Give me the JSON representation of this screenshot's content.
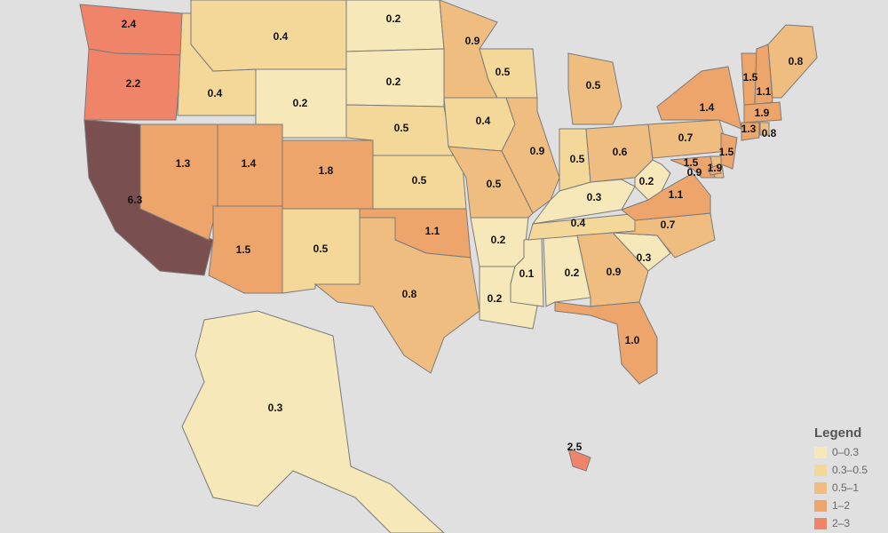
{
  "states": [
    {
      "value": 2.4,
      "color": "#f08468"
    },
    {
      "value": 2.2,
      "color": "#f08468"
    },
    {
      "value": 6.3,
      "color": "#7a4f50"
    },
    {
      "value": 0.4,
      "color": "#f4d89a"
    },
    {
      "value": 0.4,
      "color": "#f4d89a"
    },
    {
      "value": 0.2,
      "color": "#f6e8b8"
    },
    {
      "value": 1.3,
      "color": "#eda56b"
    },
    {
      "value": 1.4,
      "color": "#eda56b"
    },
    {
      "value": 1.8,
      "color": "#eda56b"
    },
    {
      "value": 1.5,
      "color": "#eda56b"
    },
    {
      "value": 0.5,
      "color": "#f4d89a"
    },
    {
      "value": 0.2,
      "color": "#f6e8b8"
    },
    {
      "value": 0.2,
      "color": "#f6e8b8"
    },
    {
      "value": 0.5,
      "color": "#f4d89a"
    },
    {
      "value": 0.5,
      "color": "#f4d89a"
    },
    {
      "value": 1.1,
      "color": "#eda56b"
    },
    {
      "value": 0.8,
      "color": "#f0bd80"
    },
    {
      "value": 0.9,
      "color": "#f0bd80"
    },
    {
      "value": 0.4,
      "color": "#f4d89a"
    },
    {
      "value": 0.5,
      "color": "#f0bd80"
    },
    {
      "value": 0.5,
      "color": "#f4d89a"
    },
    {
      "value": 0.9,
      "color": "#f0bd80"
    },
    {
      "value": 0.2,
      "color": "#f6e8b8"
    },
    {
      "value": 0.2,
      "color": "#f6e8b8"
    },
    {
      "value": 0.1,
      "color": "#f6e8b8"
    },
    {
      "value": 0.2,
      "color": "#f6e8b8"
    },
    {
      "value": 0.4,
      "color": "#f4d89a"
    },
    {
      "value": 0.3,
      "color": "#f6e8b8"
    },
    {
      "value": 0.5,
      "color": "#f4d89a"
    },
    {
      "value": 0.6,
      "color": "#f0bd80"
    },
    {
      "value": 0.5,
      "color": "#f0bd80"
    },
    {
      "value": 0.9,
      "color": "#f0bd80"
    },
    {
      "value": 1,
      "label": "1.0",
      "color": "#eda56b"
    },
    {
      "value": 0.3,
      "color": "#f6e8b8"
    },
    {
      "value": 0.7,
      "color": "#f0bd80"
    },
    {
      "value": 1.1,
      "color": "#eda56b"
    },
    {
      "value": 0.2,
      "color": "#f6e8b8"
    },
    {
      "value": 0.7,
      "color": "#f0bd80"
    },
    {
      "value": 1.4,
      "color": "#eda56b"
    },
    {
      "value": 1.5,
      "color": "#eda56b"
    },
    {
      "value": 0.9,
      "color": "#f0bd80"
    },
    {
      "value": 1.5,
      "color": "#eda56b"
    },
    {
      "value": 1.9,
      "color": "#eda56b"
    },
    {
      "value": 1.5,
      "color": "#eda56b"
    },
    {
      "value": 1.1,
      "color": "#eda56b"
    },
    {
      "value": 0.8,
      "color": "#f0bd80"
    },
    {
      "value": 1.9,
      "color": "#eda56b"
    },
    {
      "value": 1.3,
      "color": "#eda56b"
    },
    {
      "value": 0.8,
      "color": "#f0bd80"
    },
    {
      "value": 0.3,
      "color": "#f6e8b8"
    },
    {
      "value": 2.5,
      "color": "#f08468"
    }
  ],
  "legend": {
    "title": "Legend",
    "items": [
      {
        "label": "0–0.3",
        "color": "#f6e8b8"
      },
      {
        "label": "0.3–0.5",
        "color": "#f4d89a"
      },
      {
        "label": "0.5–1",
        "color": "#f0bd80"
      },
      {
        "label": "1–2",
        "color": "#eda56b"
      },
      {
        "label": "2–3",
        "color": "#f08468"
      }
    ]
  }
}
